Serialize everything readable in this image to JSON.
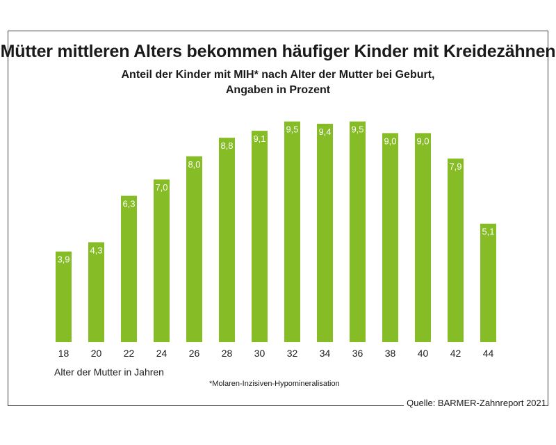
{
  "chart_data": {
    "type": "bar",
    "title": "Mütter mittleren Alters bekommen häufiger Kinder mit Kreidezähnen",
    "subtitle_lines": [
      "Anteil der Kinder mit MIH* nach Alter der Mutter bei Geburt,",
      "Angaben in Prozent"
    ],
    "xlabel": "Alter der Mutter in Jahren",
    "categories": [
      "18",
      "20",
      "22",
      "24",
      "26",
      "28",
      "30",
      "32",
      "34",
      "36",
      "38",
      "40",
      "42",
      "44"
    ],
    "values": [
      3.9,
      4.3,
      6.3,
      7.0,
      8.0,
      8.8,
      9.1,
      9.5,
      9.4,
      9.5,
      9.0,
      9.0,
      7.9,
      5.1
    ],
    "value_labels": [
      "3,9",
      "4,3",
      "6,3",
      "7,0",
      "8,0",
      "8,8",
      "9,1",
      "9,5",
      "9,4",
      "9,5",
      "9,0",
      "9,0",
      "7,9",
      "5,1"
    ],
    "ylim": [
      0,
      10
    ],
    "grid": false,
    "bar_color": "#86bc25"
  },
  "footnote": "*Molaren-Inzisiven-Hypomineralisation",
  "source": "Quelle: BARMER-Zahnreport 2021"
}
